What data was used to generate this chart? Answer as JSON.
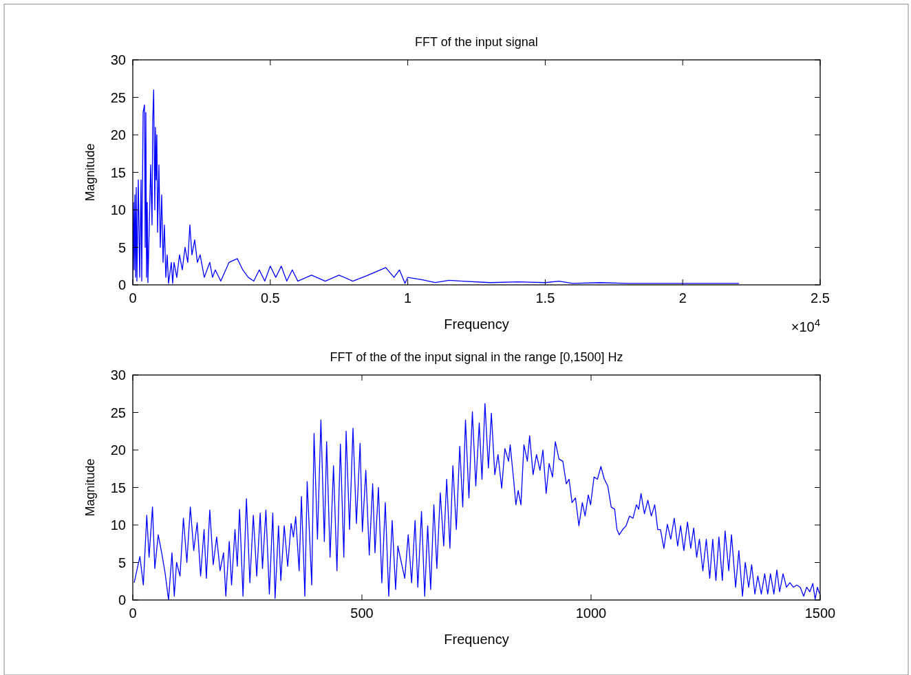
{
  "chart_data": [
    {
      "type": "line",
      "title": "FFT of the input signal",
      "xlabel": "Frequency",
      "ylabel": "Magnitude",
      "annotations": [
        "×10$^{4}$"
      ],
      "xlim": [
        0,
        2.5
      ],
      "xticks": [
        0,
        0.5,
        1,
        1.5,
        2,
        2.5
      ],
      "ylim": [
        0,
        30
      ],
      "yticks": [
        0,
        5,
        10,
        15,
        20,
        25,
        30
      ],
      "x": [
        0,
        0.0025,
        0.005,
        0.0075,
        0.01,
        0.0125,
        0.015,
        0.02,
        0.025,
        0.03,
        0.0325,
        0.0375,
        0.0425,
        0.045,
        0.0475,
        0.05,
        0.0525,
        0.055,
        0.06,
        0.065,
        0.07,
        0.0725,
        0.076,
        0.08,
        0.0825,
        0.085,
        0.0875,
        0.09,
        0.095,
        0.1,
        0.105,
        0.11,
        0.115,
        0.12,
        0.125,
        0.13,
        0.14,
        0.145,
        0.15,
        0.16,
        0.17,
        0.18,
        0.19,
        0.2,
        0.2075,
        0.215,
        0.225,
        0.235,
        0.245,
        0.26,
        0.28,
        0.29,
        0.3,
        0.32,
        0.35,
        0.38,
        0.4,
        0.42,
        0.44,
        0.46,
        0.48,
        0.5,
        0.52,
        0.54,
        0.56,
        0.58,
        0.6,
        0.65,
        0.7,
        0.75,
        0.8,
        0.85,
        0.92,
        0.95,
        0.97,
        0.99,
        1.0,
        1.05,
        1.1,
        1.15,
        1.2,
        1.3,
        1.4,
        1.5,
        1.55,
        1.6,
        1.7,
        1.8,
        1.9,
        2.0,
        2.1,
        2.205
      ],
      "series": [
        {
          "color": "#0000ff",
          "values": [
            0,
            11,
            2,
            12,
            1,
            13,
            0.5,
            14,
            1,
            14,
            0.5,
            23,
            24,
            5,
            23,
            1,
            11,
            0.3,
            8,
            16,
            8,
            22,
            26,
            10,
            21,
            14,
            20,
            7,
            16,
            5,
            12,
            3,
            8,
            1,
            4,
            0.2,
            3,
            0.2,
            3,
            1,
            4,
            2,
            5,
            3,
            8,
            4,
            6,
            3,
            4,
            1,
            3,
            1,
            2,
            0.5,
            3,
            3.5,
            2,
            1,
            0.5,
            2,
            0.5,
            2.5,
            1,
            2.5,
            0.5,
            2,
            0.5,
            1.3,
            0.5,
            1.3,
            0.5,
            1.2,
            2.3,
            1,
            2,
            0.2,
            1,
            0.7,
            0.3,
            0.6,
            0.5,
            0.3,
            0.4,
            0.3,
            0.5,
            0.2,
            0.3,
            0.2,
            0.2,
            0.2,
            0.2,
            0.2
          ]
        }
      ]
    },
    {
      "type": "line",
      "title": "FFT of the of the input signal in the range [0,1500] Hz",
      "xlabel": "Frequency",
      "ylabel": "Magnitude",
      "xlim": [
        0,
        1500
      ],
      "xticks": [
        0,
        500,
        1000,
        1500
      ],
      "ylim": [
        0,
        30
      ],
      "yticks": [
        0,
        5,
        10,
        15,
        20,
        25,
        30
      ],
      "x": [
        3,
        15.5,
        23,
        30.5,
        35.5,
        43,
        48,
        55.5,
        63,
        70.5,
        78,
        85.5,
        90.5,
        95.5,
        103,
        110.5,
        118,
        125.5,
        133,
        140.5,
        148,
        155.5,
        160.5,
        168,
        175.5,
        183,
        190.5,
        198,
        203,
        210.5,
        215.5,
        223,
        228,
        233,
        240.5,
        248,
        255.5,
        263,
        270.5,
        278,
        283,
        290.5,
        298,
        305.5,
        310.5,
        318,
        323,
        330.5,
        338,
        345.5,
        350.5,
        355.5,
        363,
        368,
        375.5,
        380.5,
        390.5,
        395.5,
        403,
        410.5,
        418,
        423,
        430.5,
        438,
        445.5,
        453,
        460.5,
        465.5,
        473,
        480.5,
        488,
        496,
        501,
        508.5,
        516,
        523.5,
        528.5,
        536,
        543.5,
        551,
        558.5,
        566,
        573.5,
        578.5,
        586,
        593.5,
        601,
        608.5,
        616,
        622,
        630,
        637,
        643.5,
        650,
        657,
        663.5,
        671,
        678.5,
        685,
        692,
        698.5,
        706,
        713.5,
        720,
        726,
        733.5,
        741,
        748.5,
        756,
        762,
        768.5,
        776,
        782.5,
        790,
        797,
        805,
        812,
        820,
        823.5,
        831,
        836,
        841,
        847,
        853.5,
        861,
        866,
        873.5,
        881,
        888.5,
        895,
        902,
        908.5,
        916,
        922,
        930,
        938.5,
        946,
        952,
        958.5,
        966,
        973.5,
        981,
        987,
        994,
        999,
        1006.5,
        1014,
        1021.5,
        1029,
        1036.5,
        1044,
        1051.5,
        1056.5,
        1061.5,
        1069,
        1076.5,
        1084,
        1091.5,
        1099,
        1104,
        1109,
        1116.5,
        1124,
        1131.5,
        1139,
        1145.5,
        1151.5,
        1159,
        1166.5,
        1174,
        1181.5,
        1189,
        1195.5,
        1202.5,
        1210.5,
        1217.5,
        1224,
        1230.5,
        1236.5,
        1244,
        1251.5,
        1259,
        1265.5,
        1272.5,
        1279,
        1286.5,
        1292.5,
        1300.5,
        1306.5,
        1315.5,
        1322.5,
        1330.5,
        1336.5,
        1344,
        1350.5,
        1357.5,
        1364,
        1371.5,
        1379,
        1385.5,
        1391.5,
        1399,
        1405.5,
        1411.5,
        1419,
        1426.5,
        1434,
        1441.5,
        1449,
        1456.5,
        1464,
        1470.5,
        1477.5,
        1484,
        1489,
        1494,
        1499
      ],
      "series": [
        {
          "color": "#0000ff",
          "values": [
            2.3,
            5.8,
            2.0,
            11.3,
            5.7,
            12.4,
            4.2,
            8.7,
            6.3,
            3.6,
            0,
            6.3,
            0.5,
            5.0,
            3.2,
            10.9,
            5.0,
            12.4,
            6.6,
            10.3,
            3.2,
            9.4,
            2.9,
            12.0,
            4.7,
            8.4,
            3.9,
            6.3,
            0.5,
            7.8,
            2.0,
            9.4,
            4.5,
            12.1,
            0.5,
            13.5,
            2.3,
            11.3,
            3.2,
            11.6,
            4.2,
            12.0,
            0.8,
            11.6,
            0.2,
            9.9,
            2.6,
            9.9,
            4.5,
            10.2,
            8.4,
            11.1,
            3.9,
            13.8,
            0.5,
            15.8,
            2.0,
            22.2,
            8.1,
            24.0,
            7.8,
            21.1,
            5.7,
            17.9,
            3.9,
            20.8,
            5.7,
            22.5,
            9.4,
            22.9,
            10.2,
            20.9,
            9.1,
            17.3,
            6.0,
            15.5,
            6.3,
            15.0,
            2.3,
            13.0,
            0.5,
            10.6,
            1.4,
            7.2,
            5.0,
            2.9,
            8.7,
            2.3,
            10.6,
            1.7,
            11.8,
            0.5,
            9.9,
            1.4,
            12.7,
            4.2,
            14.3,
            7.2,
            16.1,
            6.9,
            17.9,
            9.4,
            20.5,
            12.4,
            24.0,
            13.6,
            25.1,
            15.2,
            23.6,
            16.1,
            26.2,
            17.6,
            24.9,
            16.7,
            19.4,
            14.9,
            20.2,
            18.5,
            20.7,
            16.1,
            12.7,
            14.6,
            12.7,
            20.7,
            18.5,
            21.9,
            16.7,
            19.4,
            17.3,
            20.0,
            14.2,
            18.2,
            16.4,
            21.1,
            18.8,
            18.5,
            15.5,
            16.1,
            13.0,
            13.6,
            9.9,
            13.0,
            11.2,
            14.0,
            12.7,
            16.4,
            16.1,
            17.8,
            16.1,
            15.2,
            12.4,
            12.1,
            9.4,
            8.7,
            9.4,
            9.9,
            11.2,
            10.9,
            12.7,
            12.1,
            14.2,
            11.5,
            13.3,
            11.2,
            12.7,
            9.4,
            9.4,
            6.9,
            10.1,
            8.1,
            10.9,
            7.2,
            9.9,
            6.6,
            10.4,
            6.9,
            9.6,
            5.7,
            8.1,
            3.9,
            8.1,
            2.9,
            8.1,
            2.6,
            8.4,
            2.6,
            9.2,
            3.9,
            8.7,
            1.7,
            6.6,
            0.5,
            5.0,
            1.7,
            4.7,
            0.8,
            3.2,
            0.8,
            3.5,
            0.8,
            3.5,
            0.8,
            4.0,
            1.1,
            3.5,
            1.7,
            2.3,
            1.7,
            2.0,
            1.7,
            0.5,
            1.7,
            1.1,
            2.2,
            0.1,
            1.7,
            0.8
          ]
        }
      ]
    }
  ]
}
